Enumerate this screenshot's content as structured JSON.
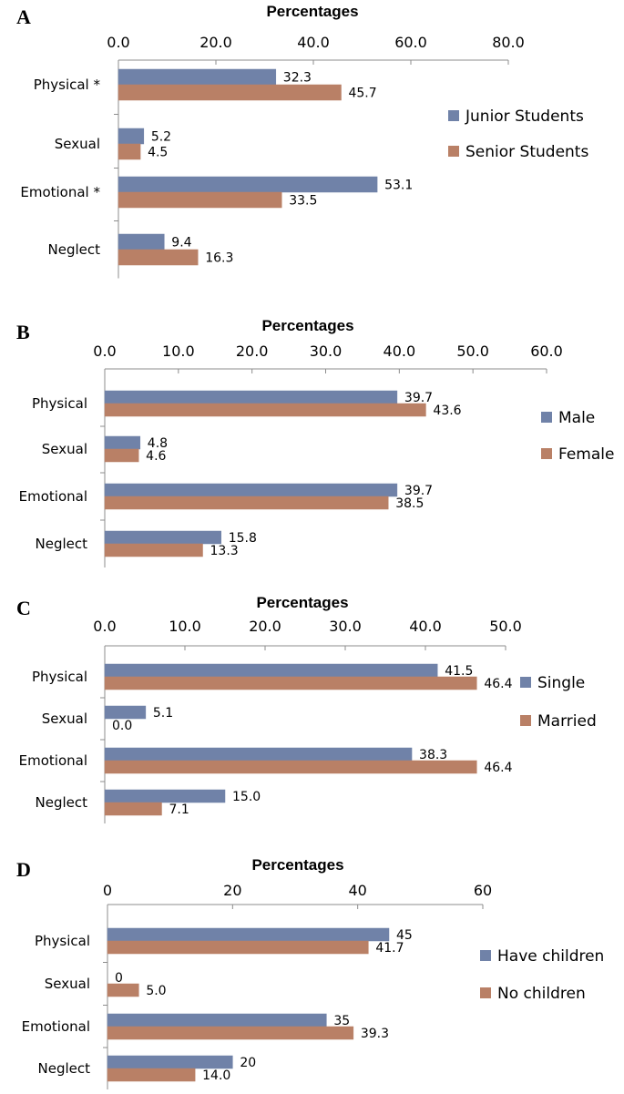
{
  "colors": {
    "series_1": "#7082a8",
    "series_2": "#b98066",
    "axis": "#8c8c8c"
  },
  "chart_data": [
    {
      "type": "bar",
      "orientation": "horizontal",
      "panel": "A",
      "title": "Percentages",
      "categories": [
        "Physical *",
        "Sexual",
        "Emotional *",
        "Neglect"
      ],
      "series": [
        {
          "name": "Junior Students",
          "values": [
            32.3,
            5.2,
            53.1,
            9.4
          ],
          "labels": [
            "32.3",
            "5.2",
            "53.1",
            "9.4"
          ]
        },
        {
          "name": "Senior Students",
          "values": [
            45.7,
            4.5,
            33.5,
            16.3
          ],
          "labels": [
            "45.7",
            "4.5",
            "33.5",
            "16.3"
          ]
        }
      ],
      "ticks": [
        "0.0",
        "20.0",
        "40.0",
        "60.0",
        "80.0"
      ],
      "xlim": [
        0,
        80
      ],
      "xlabel": "Percentages",
      "legend_position": "right",
      "grid": false
    },
    {
      "type": "bar",
      "orientation": "horizontal",
      "panel": "B",
      "title": "Percentages",
      "categories": [
        "Physical",
        "Sexual",
        "Emotional",
        "Neglect"
      ],
      "series": [
        {
          "name": "Male",
          "values": [
            39.7,
            4.8,
            39.7,
            15.8
          ],
          "labels": [
            "39.7",
            "4.8",
            "39.7",
            "15.8"
          ]
        },
        {
          "name": "Female",
          "values": [
            43.6,
            4.6,
            38.5,
            13.3
          ],
          "labels": [
            "43.6",
            "4.6",
            "38.5",
            "13.3"
          ]
        }
      ],
      "ticks": [
        "0.0",
        "10.0",
        "20.0",
        "30.0",
        "40.0",
        "50.0",
        "60.0"
      ],
      "xlim": [
        0,
        60
      ],
      "xlabel": "Percentages",
      "legend_position": "right",
      "grid": false
    },
    {
      "type": "bar",
      "orientation": "horizontal",
      "panel": "C",
      "title": "Percentages",
      "categories": [
        "Physical",
        "Sexual",
        "Emotional",
        "Neglect"
      ],
      "series": [
        {
          "name": "Single",
          "values": [
            41.5,
            5.1,
            38.3,
            15.0
          ],
          "labels": [
            "41.5",
            "5.1",
            "38.3",
            "15.0"
          ]
        },
        {
          "name": "Married",
          "values": [
            46.4,
            0.0,
            46.4,
            7.1
          ],
          "labels": [
            "46.4",
            "0.0",
            "46.4",
            "7.1"
          ]
        }
      ],
      "ticks": [
        "0.0",
        "10.0",
        "20.0",
        "30.0",
        "40.0",
        "50.0"
      ],
      "xlim": [
        0,
        50
      ],
      "xlabel": "Percentages",
      "legend_position": "right",
      "grid": false
    },
    {
      "type": "bar",
      "orientation": "horizontal",
      "panel": "D",
      "title": "Percentages",
      "categories": [
        "Physical",
        "Sexual",
        "Emotional",
        "Neglect"
      ],
      "series": [
        {
          "name": "Have children",
          "values": [
            45,
            0,
            35,
            20
          ],
          "labels": [
            "45",
            "0",
            "35",
            "20"
          ]
        },
        {
          "name": "No children",
          "values": [
            41.7,
            5.0,
            39.3,
            14.0
          ],
          "labels": [
            "41.7",
            "5.0",
            "39.3",
            "14.0"
          ]
        }
      ],
      "ticks": [
        "0",
        "20",
        "40",
        "60"
      ],
      "xlim": [
        0,
        60
      ],
      "xlabel": "Percentages",
      "legend_position": "right",
      "grid": false
    }
  ]
}
